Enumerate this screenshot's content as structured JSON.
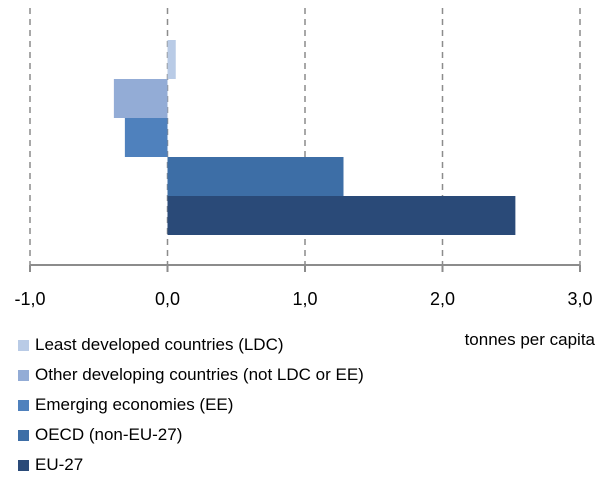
{
  "chart_data": {
    "type": "bar",
    "orientation": "horizontal",
    "unit_label": "tonnes per capita",
    "xlim": [
      -1.0,
      3.0
    ],
    "x_ticks": [
      "-1,0",
      "0,0",
      "1,0",
      "2,0",
      "3,0"
    ],
    "grid": "vertical dashed",
    "legend_position": "bottom-left",
    "series": [
      {
        "name": "Least developed countries (LDC)",
        "value": 0.06,
        "color": "#b9cbe6"
      },
      {
        "name": "Other developing countries (not LDC or EE)",
        "value": -0.39,
        "color": "#93acd6"
      },
      {
        "name": "Emerging economies (EE)",
        "value": -0.31,
        "color": "#4f81bd"
      },
      {
        "name": "OECD (non-EU-27)",
        "value": 1.28,
        "color": "#3d6ea6"
      },
      {
        "name": "EU-27",
        "value": 2.53,
        "color": "#2a4a78"
      }
    ]
  }
}
